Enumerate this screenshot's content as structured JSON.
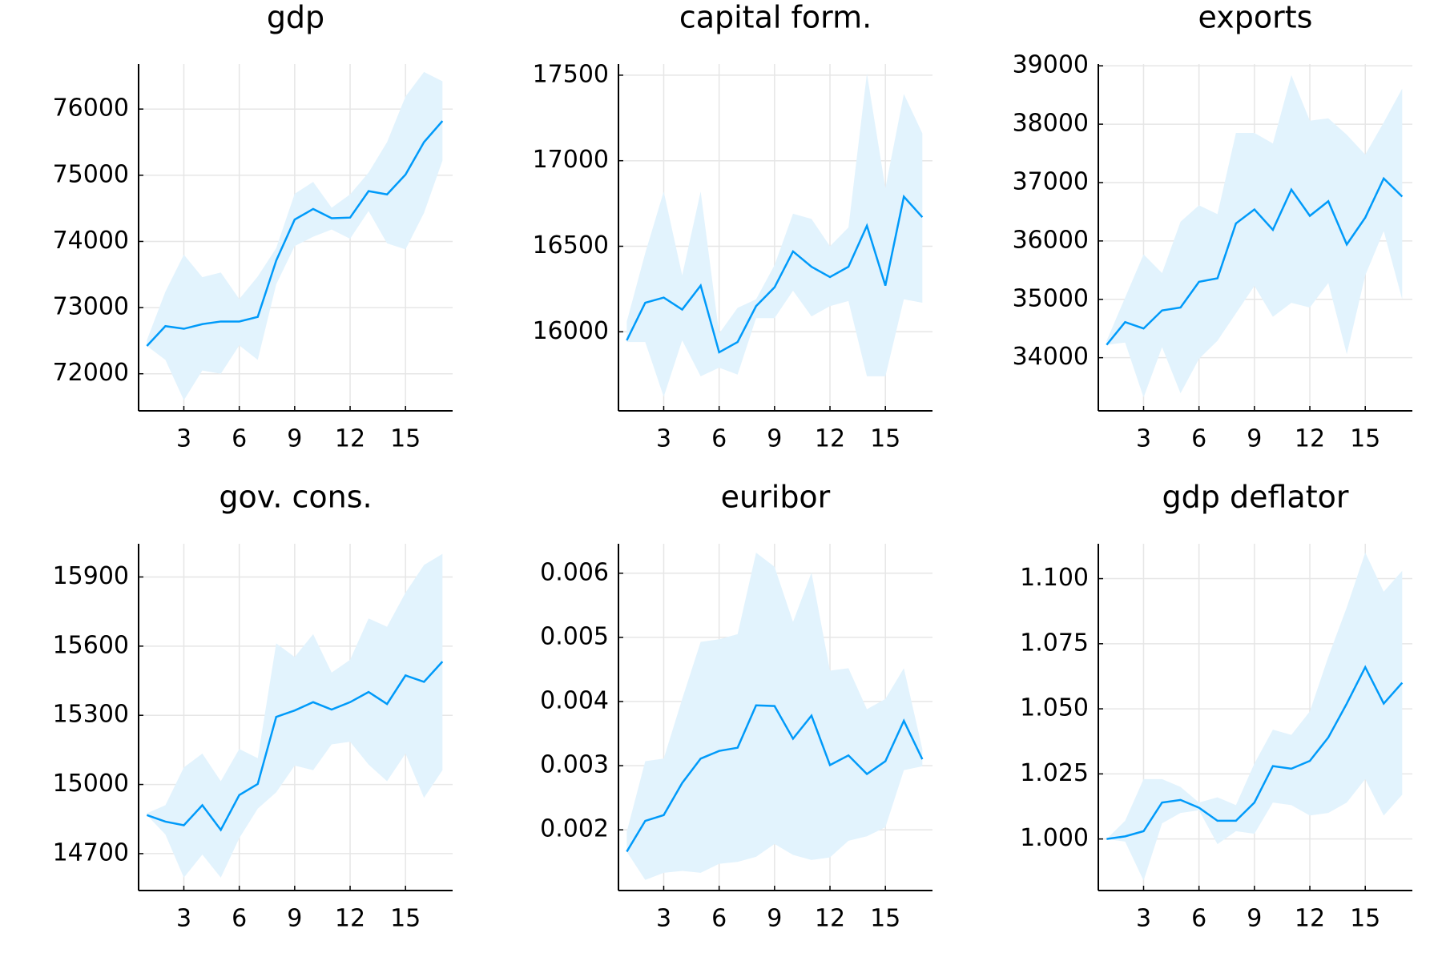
{
  "chart_data": [
    {
      "type": "line",
      "title": "gdp",
      "x": [
        1,
        2,
        3,
        4,
        5,
        6,
        7,
        8,
        9,
        10,
        11,
        12,
        13,
        14,
        15,
        16,
        17
      ],
      "values": [
        72420,
        72720,
        72680,
        72750,
        72790,
        72790,
        72860,
        73710,
        74330,
        74490,
        74350,
        74360,
        74760,
        74710,
        75010,
        75500,
        75820
      ],
      "upper": [
        72510,
        73240,
        73800,
        73460,
        73530,
        73130,
        73470,
        73900,
        74720,
        74900,
        74510,
        74710,
        75040,
        75500,
        76190,
        76560,
        76420
      ],
      "lower": [
        72420,
        72210,
        71600,
        72050,
        72000,
        72430,
        72210,
        73350,
        73930,
        74070,
        74180,
        74040,
        74460,
        73970,
        73880,
        74430,
        75220
      ],
      "color": "#009af9",
      "band_color": "#e2f3fd",
      "xlim": [
        0.55,
        17.55
      ],
      "ylim": [
        71440,
        76680
      ],
      "xticks": [
        3,
        6,
        9,
        12,
        15
      ],
      "yticks": [
        72000,
        73000,
        74000,
        75000,
        76000
      ],
      "grid": true
    },
    {
      "type": "line",
      "title": "capital form.",
      "x": [
        1,
        2,
        3,
        4,
        5,
        6,
        7,
        8,
        9,
        10,
        11,
        12,
        13,
        14,
        15,
        16,
        17
      ],
      "values": [
        15950,
        16170,
        16200,
        16130,
        16270,
        15880,
        15940,
        16150,
        16260,
        16470,
        16380,
        16320,
        16380,
        16620,
        16270,
        16790,
        16670
      ],
      "upper": [
        16060,
        16460,
        16820,
        16330,
        16820,
        15990,
        16140,
        16190,
        16390,
        16690,
        16660,
        16500,
        16610,
        17510,
        16840,
        17390,
        17160
      ],
      "lower": [
        15940,
        15940,
        15620,
        15950,
        15740,
        15790,
        15750,
        16080,
        16080,
        16240,
        16090,
        16150,
        16180,
        15740,
        15740,
        16190,
        16170
      ],
      "color": "#009af9",
      "band_color": "#e2f3fd",
      "xlim": [
        0.55,
        17.55
      ],
      "ylim": [
        15538,
        17565
      ],
      "xticks": [
        3,
        6,
        9,
        12,
        15
      ],
      "yticks": [
        16000,
        16500,
        17000,
        17500
      ],
      "grid": true
    },
    {
      "type": "line",
      "title": "exports",
      "x": [
        1,
        2,
        3,
        4,
        5,
        6,
        7,
        8,
        9,
        10,
        11,
        12,
        13,
        14,
        15,
        16,
        17
      ],
      "values": [
        34220,
        34610,
        34500,
        34810,
        34860,
        35300,
        35360,
        36300,
        36540,
        36190,
        36880,
        36430,
        36680,
        35940,
        36400,
        37070,
        36760
      ],
      "upper": [
        34290,
        35030,
        35770,
        35450,
        36330,
        36610,
        36460,
        37850,
        37850,
        37670,
        38840,
        38060,
        38100,
        37820,
        37480,
        38030,
        38610
      ],
      "lower": [
        34220,
        34260,
        33320,
        34180,
        33390,
        33980,
        34290,
        34760,
        35230,
        34700,
        34940,
        34860,
        35280,
        34060,
        35410,
        36170,
        35000
      ],
      "color": "#009af9",
      "band_color": "#e2f3fd",
      "xlim": [
        0.55,
        17.55
      ],
      "ylim": [
        33090,
        39030
      ],
      "xticks": [
        3,
        6,
        9,
        12,
        15
      ],
      "yticks": [
        34000,
        35000,
        36000,
        37000,
        38000,
        39000
      ],
      "grid": true
    },
    {
      "type": "line",
      "title": "gov. cons.",
      "x": [
        1,
        2,
        3,
        4,
        5,
        6,
        7,
        8,
        9,
        10,
        11,
        12,
        13,
        14,
        15,
        16,
        17
      ],
      "values": [
        14867,
        14839,
        14823,
        14910,
        14803,
        14954,
        15002,
        15293,
        15321,
        15357,
        15325,
        15357,
        15401,
        15349,
        15473,
        15445,
        15533
      ],
      "upper": [
        14875,
        14910,
        15074,
        15134,
        15014,
        15154,
        15114,
        15612,
        15553,
        15652,
        15485,
        15541,
        15720,
        15684,
        15832,
        15952,
        16000
      ],
      "lower": [
        14867,
        14783,
        14596,
        14696,
        14596,
        14767,
        14895,
        14966,
        15082,
        15062,
        15174,
        15185,
        15086,
        15014,
        15134,
        14942,
        15062
      ],
      "color": "#009af9",
      "band_color": "#e2f3fd",
      "xlim": [
        0.55,
        17.55
      ],
      "ylim": [
        14540,
        16044
      ],
      "xticks": [
        3,
        6,
        9,
        12,
        15
      ],
      "yticks": [
        14700,
        15000,
        15300,
        15600,
        15900
      ],
      "grid": true
    },
    {
      "type": "line",
      "title": "euribor",
      "x": [
        1,
        2,
        3,
        4,
        5,
        6,
        7,
        8,
        9,
        10,
        11,
        12,
        13,
        14,
        15,
        16,
        17
      ],
      "values": [
        0.00166,
        0.00214,
        0.00223,
        0.00273,
        0.00311,
        0.00323,
        0.00328,
        0.00394,
        0.00393,
        0.00342,
        0.00378,
        0.00301,
        0.00316,
        0.00287,
        0.00307,
        0.0037,
        0.0031
      ],
      "upper": [
        0.00197,
        0.00307,
        0.00311,
        0.00404,
        0.00493,
        0.00497,
        0.00505,
        0.00632,
        0.0061,
        0.00524,
        0.00601,
        0.00448,
        0.00452,
        0.00388,
        0.00404,
        0.00452,
        0.00326
      ],
      "lower": [
        0.00166,
        0.00122,
        0.00133,
        0.00136,
        0.00133,
        0.00147,
        0.0015,
        0.00158,
        0.00178,
        0.00161,
        0.00153,
        0.00157,
        0.00183,
        0.0019,
        0.00204,
        0.00293,
        0.00299
      ],
      "color": "#009af9",
      "band_color": "#e2f3fd",
      "xlim": [
        0.55,
        17.55
      ],
      "ylim": [
        0.001054,
        0.006459
      ],
      "xticks": [
        3,
        6,
        9,
        12,
        15
      ],
      "yticks": [
        0.002,
        0.003,
        0.004,
        0.005,
        0.006
      ],
      "grid": true
    },
    {
      "type": "line",
      "title": "gdp deflator",
      "x": [
        1,
        2,
        3,
        4,
        5,
        6,
        7,
        8,
        9,
        10,
        11,
        12,
        13,
        14,
        15,
        16,
        17
      ],
      "values": [
        1.0,
        1.001,
        1.003,
        1.014,
        1.015,
        1.012,
        1.007,
        1.007,
        1.014,
        1.028,
        1.027,
        1.03,
        1.039,
        1.052,
        1.066,
        1.052,
        1.06
      ],
      "upper": [
        1.0,
        1.007,
        1.023,
        1.023,
        1.02,
        1.014,
        1.016,
        1.013,
        1.029,
        1.042,
        1.04,
        1.049,
        1.07,
        1.089,
        1.11,
        1.095,
        1.103
      ],
      "lower": [
        1.0,
        0.999,
        0.984,
        1.006,
        1.01,
        1.011,
        0.998,
        1.003,
        1.002,
        1.014,
        1.013,
        1.009,
        1.01,
        1.014,
        1.023,
        1.009,
        1.017
      ],
      "color": "#009af9",
      "band_color": "#e2f3fd",
      "xlim": [
        0.55,
        17.55
      ],
      "ylim": [
        0.9802,
        1.1134
      ],
      "xticks": [
        3,
        6,
        9,
        12,
        15
      ],
      "yticks": [
        {
          "value": 1.0,
          "label": "1.000"
        },
        {
          "value": 1.025,
          "label": "1.025"
        },
        {
          "value": 1.05,
          "label": "1.050"
        },
        {
          "value": 1.075,
          "label": "1.075"
        },
        {
          "value": 1.1,
          "label": "1.100"
        }
      ],
      "grid": true
    }
  ]
}
